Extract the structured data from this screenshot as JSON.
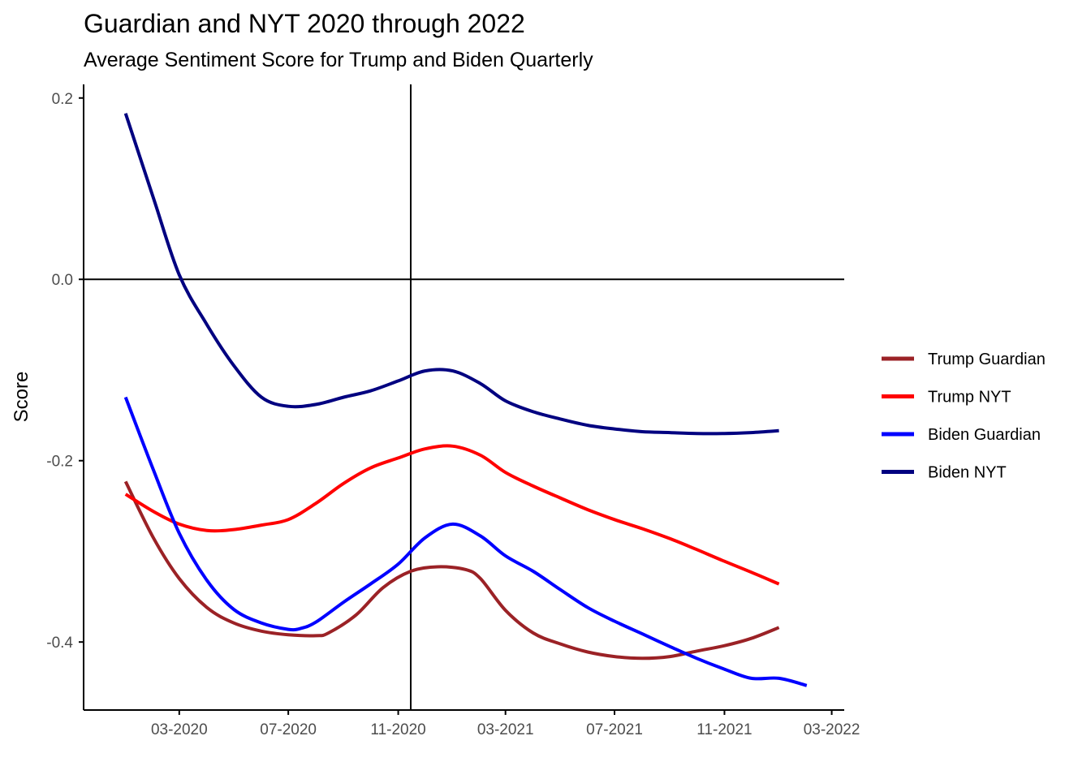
{
  "chart_data": {
    "type": "line",
    "title": "Guardian and NYT 2020 through 2022",
    "subtitle": "Average Sentiment Score for Trump and Biden Quarterly",
    "xlabel": "",
    "ylabel": "Score",
    "x_ticks": [
      "03-2020",
      "07-2020",
      "11-2020",
      "03-2021",
      "07-2021",
      "11-2021",
      "03-2022"
    ],
    "y_ticks": [
      "0.2",
      "0.0",
      "-0.2",
      "-0.4"
    ],
    "xlim": [
      "2019-11-15",
      "2022-03-15"
    ],
    "ylim": [
      -0.475,
      0.215
    ],
    "reference_lines": [
      {
        "orientation": "horizontal",
        "y": 0.0
      },
      {
        "orientation": "vertical",
        "x": "2020-11-15"
      }
    ],
    "grid": false,
    "legend_position": "right",
    "series": [
      {
        "name": "Trump Guardian",
        "color": "#9b2226",
        "points": [
          [
            "2020-01-01",
            -0.223
          ],
          [
            "2020-02-01",
            -0.285
          ],
          [
            "2020-03-01",
            -0.33
          ],
          [
            "2020-04-01",
            -0.362
          ],
          [
            "2020-05-01",
            -0.379
          ],
          [
            "2020-06-01",
            -0.388
          ],
          [
            "2020-07-01",
            -0.392
          ],
          [
            "2020-08-01",
            -0.393
          ],
          [
            "2020-08-15",
            -0.39
          ],
          [
            "2020-09-15",
            -0.37
          ],
          [
            "2020-10-15",
            -0.34
          ],
          [
            "2020-11-15",
            -0.322
          ],
          [
            "2020-12-15",
            -0.317
          ],
          [
            "2021-01-15",
            -0.32
          ],
          [
            "2021-02-01",
            -0.33
          ],
          [
            "2021-03-01",
            -0.365
          ],
          [
            "2021-04-01",
            -0.39
          ],
          [
            "2021-05-01",
            -0.402
          ],
          [
            "2021-06-01",
            -0.411
          ],
          [
            "2021-07-01",
            -0.416
          ],
          [
            "2021-08-01",
            -0.418
          ],
          [
            "2021-09-01",
            -0.416
          ],
          [
            "2021-10-01",
            -0.41
          ],
          [
            "2021-11-01",
            -0.404
          ],
          [
            "2021-12-01",
            -0.396
          ],
          [
            "2022-01-01",
            -0.384
          ]
        ]
      },
      {
        "name": "Trump NYT",
        "color": "#ff0000",
        "points": [
          [
            "2020-01-01",
            -0.237
          ],
          [
            "2020-02-01",
            -0.256
          ],
          [
            "2020-03-01",
            -0.27
          ],
          [
            "2020-04-01",
            -0.277
          ],
          [
            "2020-05-01",
            -0.276
          ],
          [
            "2020-06-01",
            -0.271
          ],
          [
            "2020-07-01",
            -0.265
          ],
          [
            "2020-08-01",
            -0.247
          ],
          [
            "2020-09-01",
            -0.225
          ],
          [
            "2020-10-01",
            -0.208
          ],
          [
            "2020-11-01",
            -0.197
          ],
          [
            "2020-12-01",
            -0.187
          ],
          [
            "2021-01-01",
            -0.184
          ],
          [
            "2021-02-01",
            -0.194
          ],
          [
            "2021-03-01",
            -0.213
          ],
          [
            "2021-04-01",
            -0.228
          ],
          [
            "2021-05-01",
            -0.241
          ],
          [
            "2021-06-01",
            -0.254
          ],
          [
            "2021-07-01",
            -0.265
          ],
          [
            "2021-08-01",
            -0.275
          ],
          [
            "2021-09-01",
            -0.286
          ],
          [
            "2021-10-01",
            -0.298
          ],
          [
            "2021-11-01",
            -0.311
          ],
          [
            "2021-12-01",
            -0.323
          ],
          [
            "2022-01-01",
            -0.336
          ]
        ]
      },
      {
        "name": "Biden Guardian",
        "color": "#0000ff",
        "points": [
          [
            "2020-01-01",
            -0.13
          ],
          [
            "2020-02-01",
            -0.21
          ],
          [
            "2020-03-01",
            -0.28
          ],
          [
            "2020-04-01",
            -0.332
          ],
          [
            "2020-05-01",
            -0.364
          ],
          [
            "2020-06-01",
            -0.379
          ],
          [
            "2020-07-01",
            -0.386
          ],
          [
            "2020-07-15",
            -0.385
          ],
          [
            "2020-08-01",
            -0.378
          ],
          [
            "2020-09-01",
            -0.356
          ],
          [
            "2020-10-01",
            -0.336
          ],
          [
            "2020-11-01",
            -0.314
          ],
          [
            "2020-12-01",
            -0.285
          ],
          [
            "2021-01-01",
            -0.27
          ],
          [
            "2021-02-01",
            -0.283
          ],
          [
            "2021-03-01",
            -0.305
          ],
          [
            "2021-04-01",
            -0.322
          ],
          [
            "2021-05-01",
            -0.342
          ],
          [
            "2021-06-01",
            -0.362
          ],
          [
            "2021-07-01",
            -0.377
          ],
          [
            "2021-08-01",
            -0.391
          ],
          [
            "2021-09-01",
            -0.405
          ],
          [
            "2021-10-01",
            -0.418
          ],
          [
            "2021-11-01",
            -0.43
          ],
          [
            "2021-12-01",
            -0.44
          ],
          [
            "2022-01-01",
            -0.44
          ],
          [
            "2022-02-01",
            -0.448
          ]
        ]
      },
      {
        "name": "Biden NYT",
        "color": "#000080",
        "points": [
          [
            "2020-01-01",
            0.183
          ],
          [
            "2020-02-01",
            0.09
          ],
          [
            "2020-03-01",
            0.005
          ],
          [
            "2020-04-01",
            -0.05
          ],
          [
            "2020-05-01",
            -0.095
          ],
          [
            "2020-06-01",
            -0.13
          ],
          [
            "2020-07-01",
            -0.14
          ],
          [
            "2020-08-01",
            -0.138
          ],
          [
            "2020-09-01",
            -0.13
          ],
          [
            "2020-10-01",
            -0.123
          ],
          [
            "2020-11-01",
            -0.112
          ],
          [
            "2020-12-01",
            -0.101
          ],
          [
            "2021-01-01",
            -0.101
          ],
          [
            "2021-02-01",
            -0.115
          ],
          [
            "2021-03-01",
            -0.134
          ],
          [
            "2021-04-01",
            -0.146
          ],
          [
            "2021-05-01",
            -0.154
          ],
          [
            "2021-06-01",
            -0.161
          ],
          [
            "2021-07-01",
            -0.165
          ],
          [
            "2021-08-01",
            -0.168
          ],
          [
            "2021-09-01",
            -0.169
          ],
          [
            "2021-10-01",
            -0.17
          ],
          [
            "2021-11-01",
            -0.17
          ],
          [
            "2021-12-01",
            -0.169
          ],
          [
            "2022-01-01",
            -0.167
          ]
        ]
      }
    ]
  }
}
